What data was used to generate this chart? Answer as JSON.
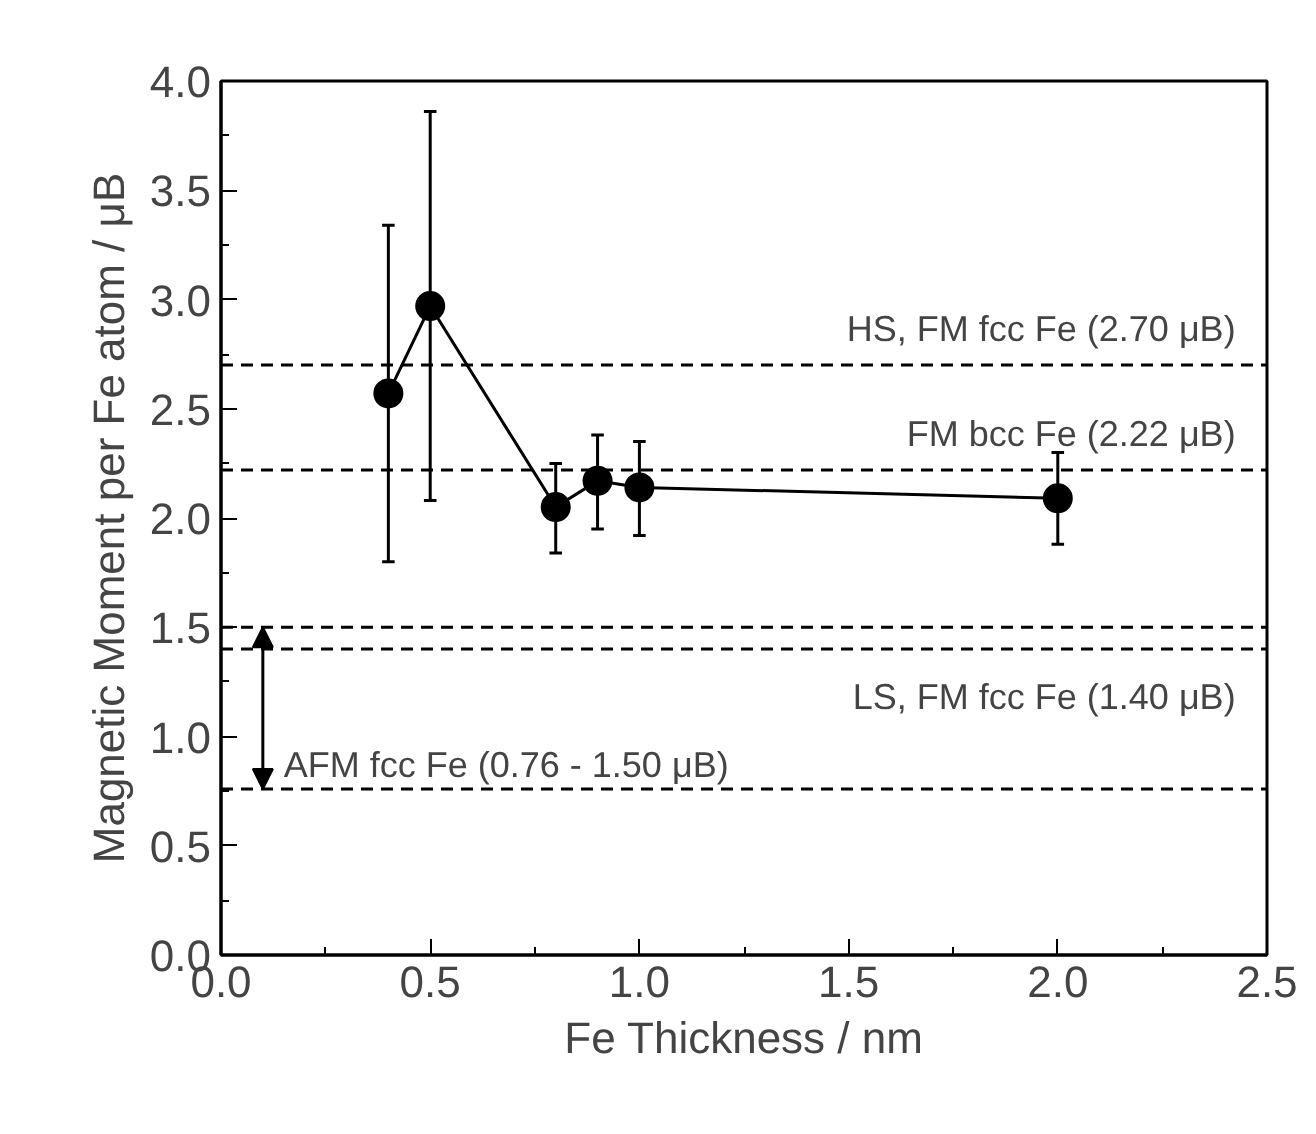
{
  "chart_data": {
    "type": "line",
    "xlabel": "Fe Thickness / nm",
    "ylabel": "Magnetic Moment per Fe atom / μB",
    "x": [
      0.4,
      0.5,
      0.8,
      0.9,
      1.0,
      2.0
    ],
    "series": [
      {
        "color": "#000000",
        "values": [
          2.57,
          2.97,
          2.05,
          2.17,
          2.14,
          2.09
        ],
        "errors": [
          [
            1.8,
            3.34
          ],
          [
            2.08,
            3.86
          ],
          [
            1.84,
            2.25
          ],
          [
            1.95,
            2.38
          ],
          [
            1.92,
            2.35
          ],
          [
            1.88,
            2.3
          ]
        ]
      }
    ],
    "marker": "circle",
    "line_style": "solid",
    "xlim": [
      0,
      2.5
    ],
    "xticks": [
      {
        "value": 0,
        "label": "0.0"
      },
      0.5,
      {
        "value": 1,
        "label": "1.0"
      },
      1.5,
      {
        "value": 2,
        "label": "2.0"
      },
      2.5
    ],
    "ylim": [
      0,
      4
    ],
    "yticks": [
      {
        "value": 0,
        "label": "0.0"
      },
      0.5,
      {
        "value": 1,
        "label": "1.0"
      },
      1.5,
      {
        "value": 2,
        "label": "2.0"
      },
      2.5,
      {
        "value": 3,
        "label": "3.0"
      },
      3.5,
      {
        "value": 4,
        "label": "4.0"
      }
    ],
    "ref_lines": [
      {
        "axis": "y",
        "value": 2.7,
        "line_style": "dashed",
        "label": "HS, FM fcc Fe (2.70 μB)"
      },
      {
        "axis": "y",
        "value": 2.22,
        "line_style": "dashed",
        "label": "FM bcc Fe (2.22 μB)"
      },
      {
        "axis": "y",
        "value": 1.5,
        "line_style": "dashed"
      },
      {
        "axis": "y",
        "value": 1.4,
        "line_style": "dashed",
        "label": "LS, FM fcc Fe (1.40 μB)"
      },
      {
        "axis": "y",
        "value": 0.76,
        "line_style": "dashed",
        "label": "AFM fcc Fe (0.76 - 1.50 μB)"
      }
    ],
    "grid": false
  }
}
